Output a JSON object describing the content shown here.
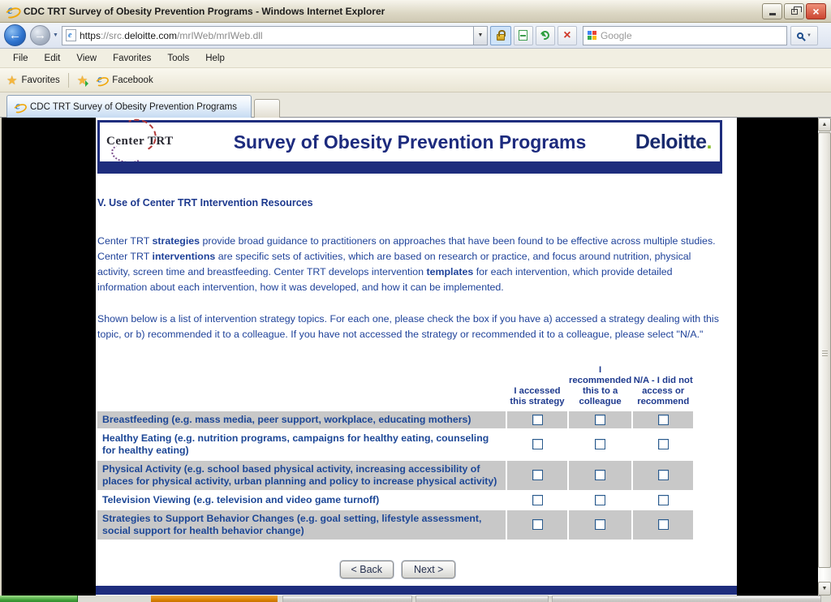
{
  "window": {
    "title": "CDC TRT Survey of Obesity Prevention Programs - Windows Internet Explorer"
  },
  "toolbar": {
    "url_scheme": "https",
    "url_host_prefix": "://src.",
    "url_domain": "deloitte.com",
    "url_path": "/mrIWeb/mrIWeb.dll",
    "search_placeholder": "Google"
  },
  "menu": {
    "items": [
      "File",
      "Edit",
      "View",
      "Favorites",
      "Tools",
      "Help"
    ]
  },
  "favorites_bar": {
    "favorites_label": "Favorites",
    "facebook_label": "Facebook"
  },
  "tabs": {
    "active_title": "CDC TRT Survey of Obesity Prevention Programs"
  },
  "page": {
    "banner": {
      "logo_text": "Center TRT",
      "title": "Survey of Obesity Prevention Programs",
      "brand": "Deloitte",
      "brand_dot": "."
    },
    "heading": "V. Use of Center TRT Intervention Resources",
    "para1": {
      "t1": "Center TRT ",
      "b1": "strategies",
      "t2": " provide broad guidance to practitioners on approaches that have been found to be effective across multiple studies. Center TRT ",
      "b2": "interventions",
      "t3": " are specific sets of activities, which are based on research or practice, and focus around nutrition, physical activity, screen time and breastfeeding. Center TRT develops intervention ",
      "b3": "templates",
      "t4": " for each intervention, which provide detailed information about each intervention, how it was developed, and how it can be implemented."
    },
    "para2": "Shown below is a list of intervention strategy topics. For each one, please check the box if you have a) accessed a strategy dealing with this topic, or b) recommended it to a colleague. If you have not accessed the strategy or recommended it to a colleague, please select \"N/A.\"",
    "table": {
      "columns": [
        "I accessed this strategy",
        "I recommended this to a colleague",
        "N/A - I did not access or recommend"
      ],
      "rows": [
        {
          "label": "Breastfeeding (e.g. mass media, peer support, workplace, educating mothers)"
        },
        {
          "label": "Healthy Eating (e.g. nutrition programs, campaigns for healthy eating, counseling for healthy eating)"
        },
        {
          "label": "Physical Activity (e.g. school based physical activity, increasing accessibility of places for physical activity, urban planning and policy to increase physical activity)"
        },
        {
          "label": "Television Viewing (e.g. television and video game turnoff)"
        },
        {
          "label": "Strategies to Support Behavior Changes (e.g. goal setting, lifestyle assessment, social support for health behavior change)"
        }
      ]
    },
    "buttons": {
      "back": "< Back",
      "next": "Next >"
    }
  },
  "colors": {
    "banner_navy": "#1e2d7d",
    "text_blue": "#20439a",
    "row_gray": "#c8c8c8",
    "deloitte_green": "#86bc25"
  }
}
